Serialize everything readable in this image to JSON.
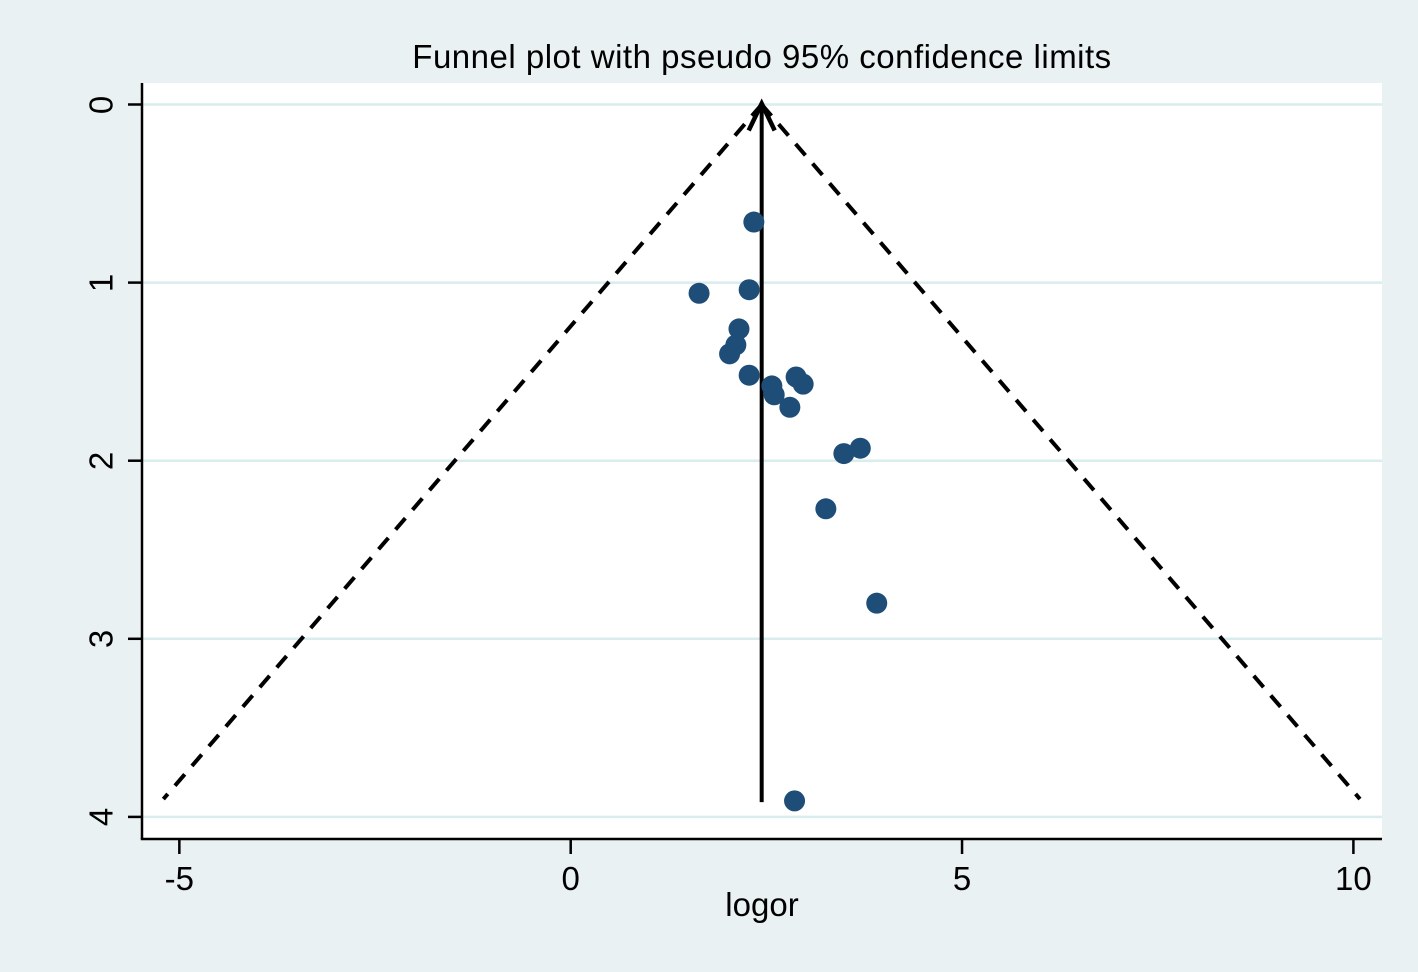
{
  "chart_data": {
    "type": "scatter",
    "subtype": "funnel-plot",
    "title": "Funnel plot with pseudo 95% confidence limits",
    "xlabel": "logor",
    "ylabel": "",
    "x_ticks": [
      -5,
      0,
      5,
      10
    ],
    "y_ticks": [
      0,
      1,
      2,
      3,
      4
    ],
    "x_axis_range": [
      -5.5,
      10.4
    ],
    "y_axis_range": [
      0,
      4.13
    ],
    "y_axis_inverted": true,
    "grid": true,
    "legend": "none",
    "center_logor": 2.44,
    "pseudo_ci_multiplier": 1.96,
    "funnel_se_extent": 3.9,
    "series": [
      {
        "name": "studies",
        "marker": "circle",
        "points": [
          {
            "x": 2.34,
            "se": 0.66
          },
          {
            "x": 1.64,
            "se": 1.06
          },
          {
            "x": 2.28,
            "se": 1.04
          },
          {
            "x": 2.15,
            "se": 1.26
          },
          {
            "x": 2.11,
            "se": 1.35
          },
          {
            "x": 2.03,
            "se": 1.4
          },
          {
            "x": 2.28,
            "se": 1.52
          },
          {
            "x": 2.57,
            "se": 1.58
          },
          {
            "x": 2.6,
            "se": 1.63
          },
          {
            "x": 2.88,
            "se": 1.53
          },
          {
            "x": 2.97,
            "se": 1.57
          },
          {
            "x": 2.8,
            "se": 1.7
          },
          {
            "x": 3.49,
            "se": 1.96
          },
          {
            "x": 3.7,
            "se": 1.93
          },
          {
            "x": 3.26,
            "se": 2.27
          },
          {
            "x": 3.91,
            "se": 2.8
          },
          {
            "x": 2.86,
            "se": 3.91
          }
        ]
      }
    ]
  },
  "colors": {
    "page_background": "#eaf1f2",
    "plot_background": "#ffffff",
    "gridline": "#d9ecee",
    "axis": "#000000",
    "funnel_lines": "#000000",
    "marker": "#1e4d78"
  }
}
